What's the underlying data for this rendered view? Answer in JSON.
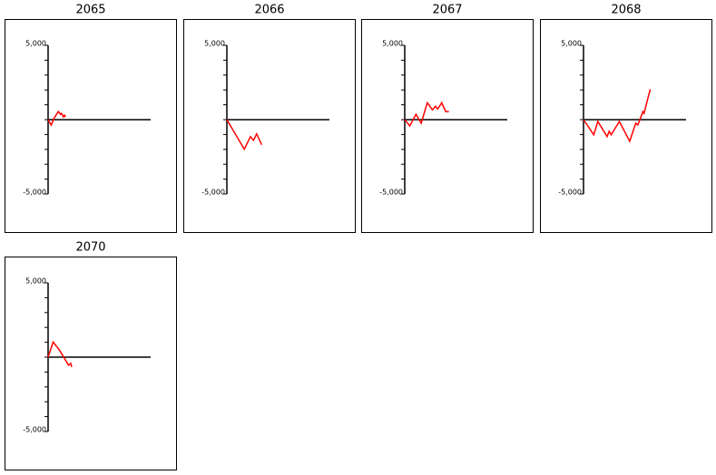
{
  "chart_data": [
    {
      "type": "line",
      "title": "2065",
      "color": "#ff0000",
      "xlim": [
        0,
        100
      ],
      "ylim": [
        -5000,
        5000
      ],
      "yticks": [
        {
          "value": -5000,
          "label": "-5,000"
        },
        {
          "value": 5000,
          "label": "5,000"
        }
      ],
      "minor_yticks": [
        -4000,
        -3000,
        -2000,
        -1000,
        0,
        1000,
        2000,
        3000,
        4000
      ],
      "reference_line": 0,
      "x": [
        0,
        3,
        6,
        10,
        12,
        13,
        15,
        16,
        17
      ],
      "values": [
        0,
        -360,
        120,
        540,
        360,
        420,
        180,
        300,
        180
      ]
    },
    {
      "type": "line",
      "title": "2066",
      "color": "#ff0000",
      "xlim": [
        0,
        100
      ],
      "ylim": [
        -5000,
        5000
      ],
      "yticks": [
        {
          "value": -5000,
          "label": "-5,000"
        },
        {
          "value": 5000,
          "label": "5,000"
        }
      ],
      "minor_yticks": [
        -4000,
        -3000,
        -2000,
        -1000,
        0,
        1000,
        2000,
        3000,
        4000
      ],
      "reference_line": 0,
      "x": [
        0,
        17,
        23,
        26,
        29,
        34
      ],
      "values": [
        0,
        -1990,
        -1140,
        -1390,
        -960,
        -1690
      ]
    },
    {
      "type": "line",
      "title": "2067",
      "color": "#ff0000",
      "xlim": [
        0,
        100
      ],
      "ylim": [
        -5000,
        5000
      ],
      "yticks": [
        {
          "value": -5000,
          "label": "-5,000"
        },
        {
          "value": 5000,
          "label": "5,000"
        }
      ],
      "minor_yticks": [
        -4000,
        -3000,
        -2000,
        -1000,
        0,
        1000,
        2000,
        3000,
        4000
      ],
      "reference_line": 0,
      "x": [
        0,
        5,
        11,
        16,
        22,
        27,
        30,
        32,
        35,
        36,
        40,
        43
      ],
      "values": [
        0,
        -420,
        360,
        -240,
        1140,
        660,
        900,
        720,
        1020,
        1140,
        540,
        540
      ]
    },
    {
      "type": "line",
      "title": "2068",
      "color": "#ff0000",
      "xlim": [
        0,
        100
      ],
      "ylim": [
        -5000,
        5000
      ],
      "yticks": [
        {
          "value": -5000,
          "label": "-5,000"
        },
        {
          "value": 5000,
          "label": "5,000"
        }
      ],
      "minor_yticks": [
        -4000,
        -3000,
        -2000,
        -1000,
        0,
        1000,
        2000,
        3000,
        4000
      ],
      "reference_line": 0,
      "x": [
        0,
        10,
        14,
        23,
        25,
        27,
        35,
        45,
        51,
        53,
        58,
        59,
        65
      ],
      "values": [
        0,
        -1020,
        -120,
        -1140,
        -780,
        -1020,
        -120,
        -1450,
        -240,
        -360,
        540,
        420,
        2050
      ]
    },
    {
      "type": "line",
      "title": "2070",
      "color": "#ff0000",
      "xlim": [
        0,
        100
      ],
      "ylim": [
        -5000,
        5000
      ],
      "yticks": [
        {
          "value": -5000,
          "label": "-5,000"
        },
        {
          "value": 5000,
          "label": "5,000"
        }
      ],
      "minor_yticks": [
        -4000,
        -3000,
        -2000,
        -1000,
        0,
        1000,
        2000,
        3000,
        4000
      ],
      "reference_line": 0,
      "x": [
        0,
        5,
        11,
        20,
        22,
        23
      ],
      "values": [
        0,
        1020,
        480,
        -540,
        -420,
        -660
      ]
    }
  ]
}
